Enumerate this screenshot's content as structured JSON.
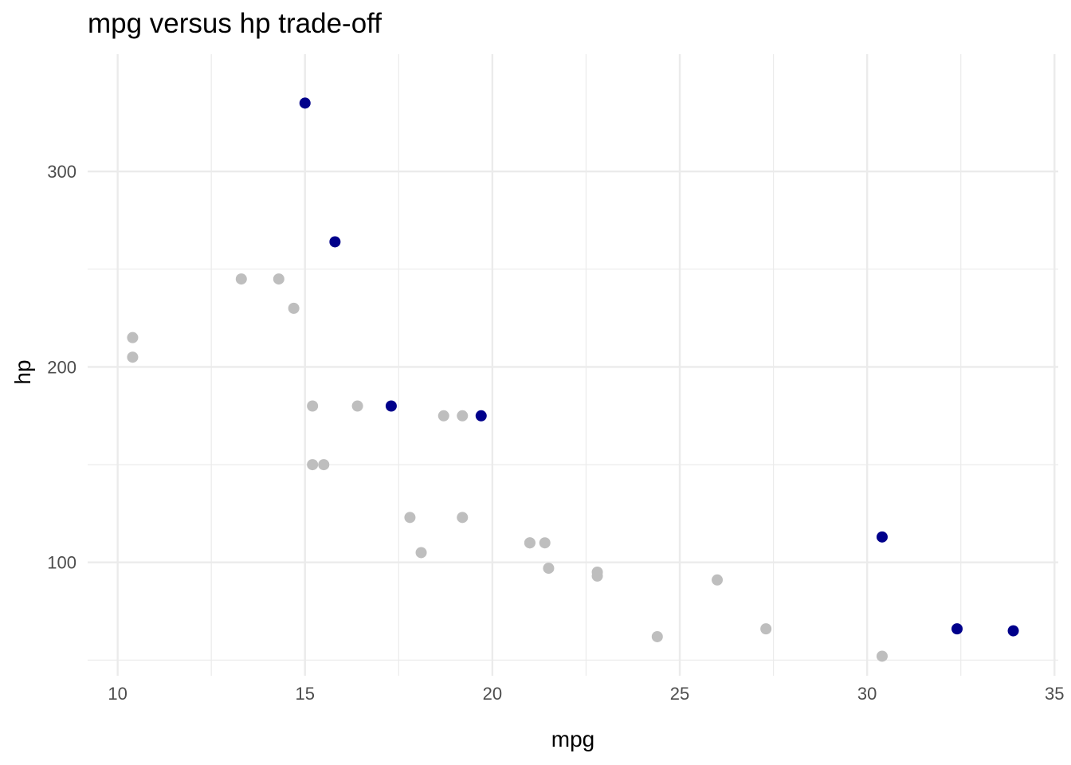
{
  "chart_data": {
    "type": "scatter",
    "title": "mpg versus hp trade-off",
    "xlabel": "mpg",
    "ylabel": "hp",
    "xlim": [
      9.2,
      35.1
    ],
    "ylim": [
      42,
      360
    ],
    "x_ticks": [
      10,
      15,
      20,
      25,
      30,
      35
    ],
    "y_ticks": [
      100,
      200,
      300
    ],
    "x_minor_ticks": [
      12.5,
      17.5,
      22.5,
      27.5,
      32.5
    ],
    "y_minor_ticks": [
      50,
      150,
      250
    ],
    "grid": true,
    "legend": "none",
    "colors": {
      "base": "#bebebe",
      "highlight": "#00008b"
    },
    "points": [
      {
        "x": 21.0,
        "y": 110,
        "group": "base"
      },
      {
        "x": 21.0,
        "y": 110,
        "group": "base"
      },
      {
        "x": 22.8,
        "y": 93,
        "group": "base"
      },
      {
        "x": 21.4,
        "y": 110,
        "group": "base"
      },
      {
        "x": 18.7,
        "y": 175,
        "group": "base"
      },
      {
        "x": 18.1,
        "y": 105,
        "group": "base"
      },
      {
        "x": 14.3,
        "y": 245,
        "group": "base"
      },
      {
        "x": 24.4,
        "y": 62,
        "group": "base"
      },
      {
        "x": 22.8,
        "y": 95,
        "group": "base"
      },
      {
        "x": 19.2,
        "y": 123,
        "group": "base"
      },
      {
        "x": 17.8,
        "y": 123,
        "group": "base"
      },
      {
        "x": 16.4,
        "y": 180,
        "group": "base"
      },
      {
        "x": 15.2,
        "y": 180,
        "group": "base"
      },
      {
        "x": 10.4,
        "y": 205,
        "group": "base"
      },
      {
        "x": 10.4,
        "y": 215,
        "group": "base"
      },
      {
        "x": 14.7,
        "y": 230,
        "group": "base"
      },
      {
        "x": 30.4,
        "y": 52,
        "group": "base"
      },
      {
        "x": 21.5,
        "y": 97,
        "group": "base"
      },
      {
        "x": 15.5,
        "y": 150,
        "group": "base"
      },
      {
        "x": 15.2,
        "y": 150,
        "group": "base"
      },
      {
        "x": 13.3,
        "y": 245,
        "group": "base"
      },
      {
        "x": 19.2,
        "y": 175,
        "group": "base"
      },
      {
        "x": 27.3,
        "y": 66,
        "group": "base"
      },
      {
        "x": 26.0,
        "y": 91,
        "group": "base"
      },
      {
        "x": 15.0,
        "y": 335,
        "group": "highlight"
      },
      {
        "x": 15.8,
        "y": 264,
        "group": "highlight"
      },
      {
        "x": 17.3,
        "y": 180,
        "group": "highlight"
      },
      {
        "x": 19.7,
        "y": 175,
        "group": "highlight"
      },
      {
        "x": 30.4,
        "y": 113,
        "group": "highlight"
      },
      {
        "x": 32.4,
        "y": 66,
        "group": "highlight"
      },
      {
        "x": 33.9,
        "y": 65,
        "group": "highlight"
      }
    ]
  }
}
